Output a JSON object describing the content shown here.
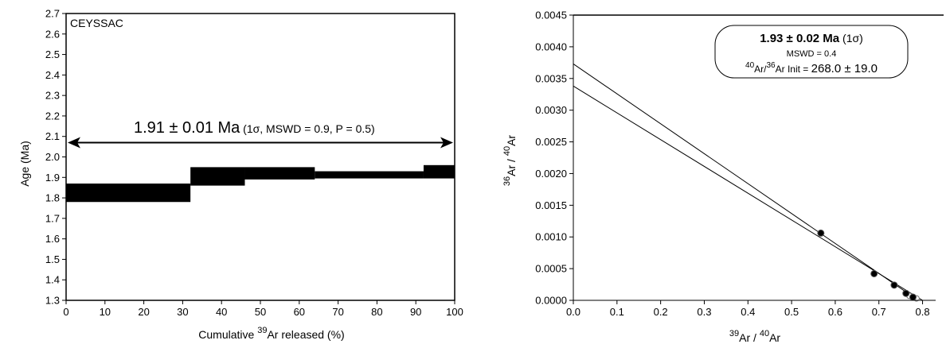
{
  "chart_data": [
    {
      "type": "plateau",
      "sample_label": "CEYSSAC",
      "xlabel_pre": "Cumulative ",
      "xlabel_sup": "39",
      "xlabel_post": "Ar released (%)",
      "ylabel": "Age (Ma)",
      "xlim": [
        0,
        100
      ],
      "ylim": [
        1.3,
        2.7
      ],
      "xticks": [
        "0",
        "10",
        "20",
        "30",
        "40",
        "50",
        "60",
        "70",
        "80",
        "90",
        "100"
      ],
      "yticks": [
        "1.3",
        "1.4",
        "1.5",
        "1.6",
        "1.7",
        "1.8",
        "1.9",
        "2.0",
        "2.1",
        "2.2",
        "2.3",
        "2.4",
        "2.5",
        "2.6",
        "2.7"
      ],
      "steps": [
        {
          "x0": 0,
          "x1": 32,
          "low": 1.78,
          "high": 1.87
        },
        {
          "x0": 32,
          "x1": 46,
          "low": 1.86,
          "high": 1.95
        },
        {
          "x0": 46,
          "x1": 64,
          "low": 1.89,
          "high": 1.95
        },
        {
          "x0": 64,
          "x1": 92,
          "low": 1.895,
          "high": 1.93
        },
        {
          "x0": 92,
          "x1": 100,
          "low": 1.895,
          "high": 1.96
        }
      ],
      "plateau": {
        "x0": 0,
        "x1": 100,
        "y": 2.07
      },
      "annotation_main": "1.91 ± 0.01 Ma",
      "annotation_detail": " (1σ, MSWD = 0.9, P = 0.5)"
    },
    {
      "type": "scatter",
      "xlabel_sup1": "39",
      "xlabel_mid": "Ar / ",
      "xlabel_sup2": "40",
      "xlabel_post": "Ar",
      "ylabel_sup1": "36",
      "ylabel_mid": "Ar / ",
      "ylabel_sup2": "40",
      "ylabel_post": "Ar",
      "xlim": [
        0,
        0.83
      ],
      "ylim": [
        0,
        0.0045
      ],
      "xticks": [
        "0.0",
        "0.1",
        "0.2",
        "0.3",
        "0.4",
        "0.5",
        "0.6",
        "0.7",
        "0.8"
      ],
      "yticks": [
        "0.0000",
        "0.0005",
        "0.0010",
        "0.0015",
        "0.0020",
        "0.0025",
        "0.0030",
        "0.0035",
        "0.0040",
        "0.0045"
      ],
      "points_filled": [
        {
          "x": 0.567,
          "y": 0.00106
        },
        {
          "x": 0.689,
          "y": 0.00042
        },
        {
          "x": 0.735,
          "y": 0.00024
        },
        {
          "x": 0.762,
          "y": 0.00011
        },
        {
          "x": 0.778,
          "y": 5e-05
        }
      ],
      "points_open": [
        {
          "x": 0.77,
          "y": 7e-05
        },
        {
          "x": 0.786,
          "y": 3e-05
        }
      ],
      "lines": [
        {
          "x0": 0,
          "y0": 0.00373,
          "x1": 0.79,
          "y1": 0.0
        },
        {
          "x0": 0,
          "y0": 0.00338,
          "x1": 0.8,
          "y1": 0.0
        }
      ],
      "box_line1_main": "1.93 ± 0.02 Ma",
      "box_line1_detail": " (1σ)",
      "box_line2": "MSWD = 0.4",
      "box_line3_sup1": "40",
      "box_line3_a": "Ar/",
      "box_line3_sup2": "36",
      "box_line3_b": "Ar Init = ",
      "box_line3_value": "268.0 ± 19.0"
    }
  ]
}
